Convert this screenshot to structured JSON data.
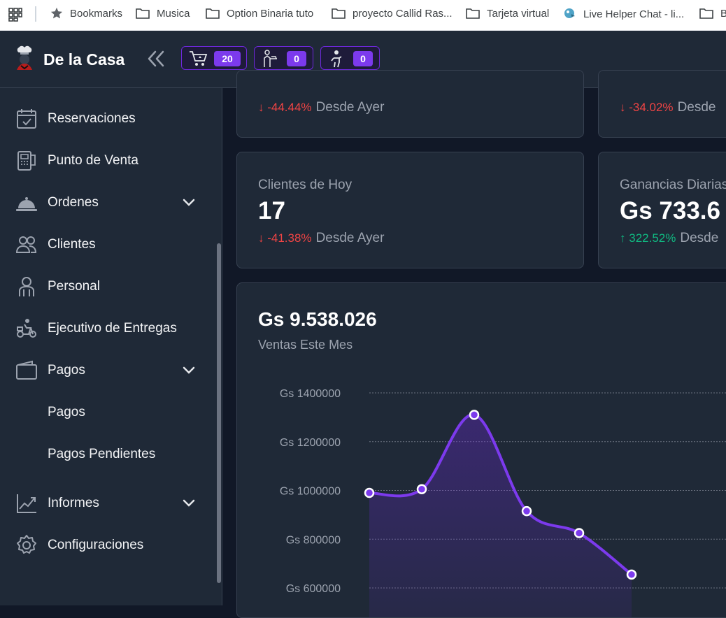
{
  "bookmarks": {
    "items": [
      {
        "label": "Bookmarks",
        "icon": "star-icon"
      },
      {
        "label": "Musica",
        "icon": "folder-icon"
      },
      {
        "label": "Option Binaria tuto",
        "icon": "folder-icon"
      },
      {
        "label": "proyecto Callid Ras...",
        "icon": "folder-icon"
      },
      {
        "label": "Tarjeta virtual",
        "icon": "folder-icon"
      },
      {
        "label": "Live Helper Chat - li...",
        "icon": "parrot-icon"
      },
      {
        "label": "B",
        "icon": "folder-icon"
      }
    ]
  },
  "header": {
    "brand": "De la Casa",
    "counters": [
      {
        "icon": "cart-icon",
        "value": "20"
      },
      {
        "icon": "waiter-icon",
        "value": "0"
      },
      {
        "icon": "delivery-person-icon",
        "value": "0"
      }
    ]
  },
  "sidebar": {
    "items": [
      {
        "label": "Reservaciones",
        "icon": "calendar-check-icon"
      },
      {
        "label": "Punto de Venta",
        "icon": "pos-terminal-icon"
      },
      {
        "label": "Ordenes",
        "icon": "cloche-icon",
        "has_children": true
      },
      {
        "label": "Clientes",
        "icon": "users-icon"
      },
      {
        "label": "Personal",
        "icon": "staff-icon"
      },
      {
        "label": "Ejecutivo de Entregas",
        "icon": "scooter-icon"
      },
      {
        "label": "Pagos",
        "icon": "wallet-icon",
        "has_children": true
      },
      {
        "label": "Pagos"
      },
      {
        "label": "Pagos Pendientes"
      },
      {
        "label": "Informes",
        "icon": "chart-line-icon",
        "has_children": true
      },
      {
        "label": "Configuraciones",
        "icon": "gear-icon"
      }
    ]
  },
  "cards": [
    {
      "delta": "-44.44%",
      "direction": "down",
      "since": "Desde Ayer"
    },
    {
      "delta": "-34.02%",
      "direction": "down",
      "since": "Desde"
    },
    {
      "title": "Clientes de Hoy",
      "value": "17",
      "delta": "-41.38%",
      "direction": "down",
      "since": "Desde Ayer"
    },
    {
      "title": "Ganancias Diarias",
      "value": "Gs 733.6",
      "delta": "322.52%",
      "direction": "up",
      "since": "Desde"
    }
  ],
  "sales_chart": {
    "title": "Gs 9.538.026",
    "subtitle": "Ventas Este Mes"
  },
  "colors": {
    "accent": "#7c3aed",
    "negative": "#ef4444",
    "positive": "#10b981",
    "background": "#111827",
    "panel": "#1f2937"
  },
  "chart_data": {
    "type": "area",
    "y_tick_labels": [
      "Gs 1400000",
      "Gs 1200000",
      "Gs 1000000",
      "Gs 800000",
      "Gs 600000"
    ],
    "y_ticks": [
      1400000,
      1200000,
      1000000,
      800000,
      600000
    ],
    "ylim": [
      600000,
      1400000
    ],
    "x": [
      1,
      2,
      3,
      4,
      5,
      6
    ],
    "values": [
      990000,
      1005000,
      1310000,
      915000,
      825000,
      655000
    ],
    "grid": true
  }
}
